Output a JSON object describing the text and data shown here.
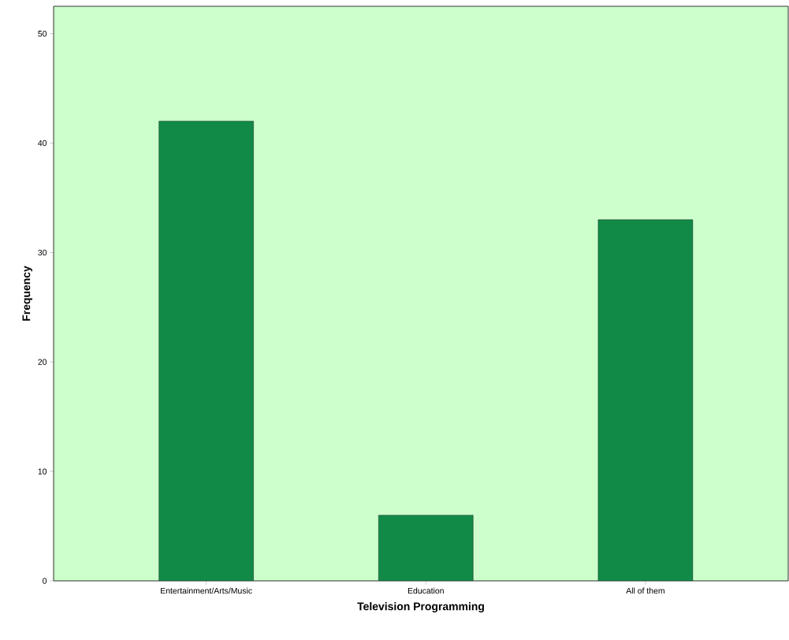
{
  "chart_data": {
    "type": "bar",
    "xlabel": "Television Programming",
    "ylabel": "Frequency",
    "categories": [
      "Entertainment/Arts/Music",
      "Education",
      "All of them"
    ],
    "values": [
      42,
      6,
      33
    ],
    "color": "#128a47",
    "ylim": [
      0,
      52.5
    ],
    "yticks": [
      0,
      10,
      20,
      30,
      40,
      50
    ]
  }
}
